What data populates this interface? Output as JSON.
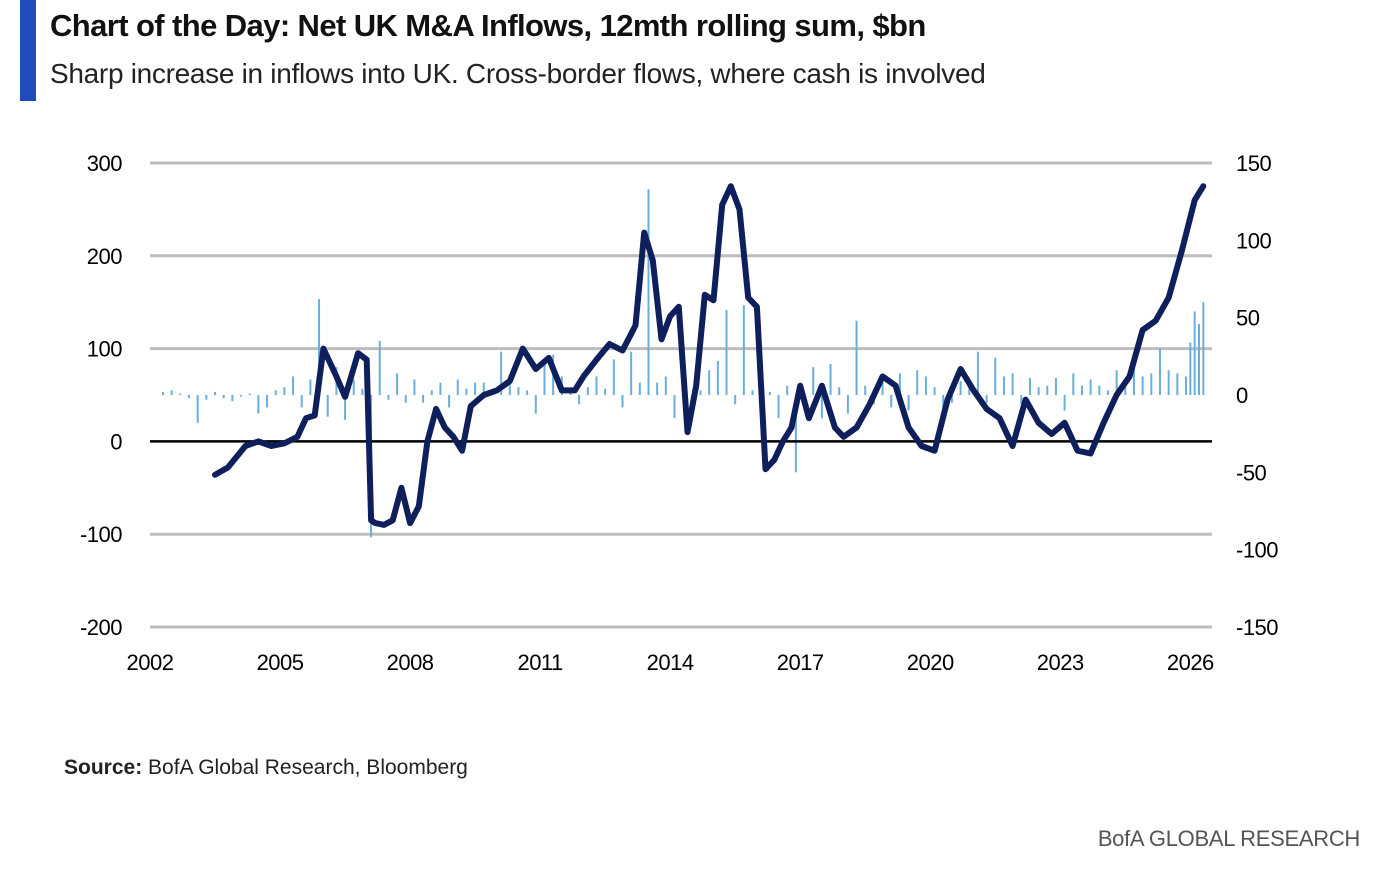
{
  "header": {
    "title": "Chart of the Day: Net UK M&A Inflows, 12mth rolling sum, $bn",
    "subtitle": "Sharp increase in inflows into UK. Cross-border flows, where cash is involved"
  },
  "source": {
    "label": "Source:",
    "text": " BofA Global Research, Bloomberg"
  },
  "footer": {
    "brand": "BofA GLOBAL RESEARCH"
  },
  "colors": {
    "accent": "#1f4bbd",
    "line": "#0f1f5c",
    "bars": "#6aaedb",
    "grid": "#bdbdbd"
  },
  "chart_data": {
    "type": "line",
    "title": "Net UK M&A Inflows, 12mth rolling sum, $bn",
    "x_ticks": [
      "2002",
      "2005",
      "2008",
      "2011",
      "2014",
      "2017",
      "2020",
      "2023",
      "2026"
    ],
    "xlim": [
      2002,
      2026.5
    ],
    "left_axis": {
      "ticks": [
        "300",
        "200",
        "100",
        "0",
        "-100",
        "-200"
      ],
      "ylim": [
        -200,
        300
      ]
    },
    "right_axis": {
      "ticks": [
        "150",
        "100",
        "50",
        "0",
        "-50",
        "-100",
        "-150"
      ],
      "ylim": [
        -150,
        150
      ]
    },
    "grid": true,
    "legend": "none",
    "series": [
      {
        "axis": "left",
        "style": "line",
        "x": [
          2003.5,
          2003.8,
          2004.2,
          2004.5,
          2004.8,
          2005.1,
          2005.4,
          2005.6,
          2005.8,
          2006.0,
          2006.3,
          2006.5,
          2006.8,
          2007.0,
          2007.1,
          2007.2,
          2007.4,
          2007.6,
          2007.8,
          2008.0,
          2008.2,
          2008.4,
          2008.6,
          2008.8,
          2009.0,
          2009.2,
          2009.4,
          2009.7,
          2010.0,
          2010.3,
          2010.6,
          2010.9,
          2011.2,
          2011.5,
          2011.8,
          2012.0,
          2012.3,
          2012.6,
          2012.9,
          2013.2,
          2013.4,
          2013.6,
          2013.8,
          2014.0,
          2014.2,
          2014.4,
          2014.6,
          2014.8,
          2015.0,
          2015.2,
          2015.4,
          2015.6,
          2015.8,
          2016.0,
          2016.2,
          2016.4,
          2016.6,
          2016.8,
          2017.0,
          2017.2,
          2017.5,
          2017.8,
          2018.0,
          2018.3,
          2018.6,
          2018.9,
          2019.2,
          2019.5,
          2019.8,
          2020.1,
          2020.4,
          2020.7,
          2021.0,
          2021.3,
          2021.6,
          2021.9,
          2022.2,
          2022.5,
          2022.8,
          2023.1,
          2023.4,
          2023.7,
          2024.0,
          2024.3,
          2024.6,
          2024.9,
          2025.2,
          2025.5,
          2025.8,
          2026.1,
          2026.3
        ],
        "y": [
          -36,
          -28,
          -5,
          0,
          -5,
          -2,
          5,
          25,
          28,
          100,
          70,
          48,
          95,
          88,
          -85,
          -88,
          -90,
          -85,
          -50,
          -88,
          -70,
          0,
          35,
          15,
          5,
          -10,
          38,
          50,
          55,
          65,
          100,
          78,
          90,
          55,
          55,
          70,
          88,
          105,
          98,
          125,
          225,
          195,
          110,
          135,
          145,
          10,
          60,
          158,
          152,
          255,
          275,
          250,
          155,
          145,
          -30,
          -20,
          0,
          15,
          60,
          25,
          60,
          15,
          5,
          15,
          40,
          70,
          60,
          15,
          -5,
          -10,
          45,
          78,
          55,
          35,
          25,
          -5,
          45,
          20,
          8,
          20,
          -10,
          -13,
          20,
          50,
          70,
          120,
          130,
          155,
          205,
          260,
          275
        ]
      },
      {
        "axis": "right",
        "style": "bar",
        "x": [
          2002.3,
          2002.5,
          2002.7,
          2002.9,
          2003.1,
          2003.3,
          2003.5,
          2003.7,
          2003.9,
          2004.1,
          2004.3,
          2004.5,
          2004.7,
          2004.9,
          2005.1,
          2005.3,
          2005.5,
          2005.7,
          2005.9,
          2006.1,
          2006.3,
          2006.5,
          2006.7,
          2006.9,
          2007.1,
          2007.3,
          2007.5,
          2007.7,
          2007.9,
          2008.1,
          2008.3,
          2008.5,
          2008.7,
          2008.9,
          2009.1,
          2009.3,
          2009.5,
          2009.7,
          2009.9,
          2010.1,
          2010.3,
          2010.5,
          2010.7,
          2010.9,
          2011.1,
          2011.3,
          2011.5,
          2011.7,
          2011.9,
          2012.1,
          2012.3,
          2012.5,
          2012.7,
          2012.9,
          2013.1,
          2013.3,
          2013.5,
          2013.7,
          2013.9,
          2014.1,
          2014.3,
          2014.5,
          2014.7,
          2014.9,
          2015.1,
          2015.3,
          2015.5,
          2015.7,
          2015.9,
          2016.1,
          2016.3,
          2016.5,
          2016.7,
          2016.9,
          2017.1,
          2017.3,
          2017.5,
          2017.7,
          2017.9,
          2018.1,
          2018.3,
          2018.5,
          2018.7,
          2018.9,
          2019.1,
          2019.3,
          2019.5,
          2019.7,
          2019.9,
          2020.1,
          2020.3,
          2020.5,
          2020.7,
          2020.9,
          2021.1,
          2021.3,
          2021.5,
          2021.7,
          2021.9,
          2022.1,
          2022.3,
          2022.5,
          2022.7,
          2022.9,
          2023.1,
          2023.3,
          2023.5,
          2023.7,
          2023.9,
          2024.1,
          2024.3,
          2024.5,
          2024.7,
          2024.9,
          2025.1,
          2025.3,
          2025.5,
          2025.7,
          2025.9,
          2026.0,
          2026.1,
          2026.2,
          2026.3
        ],
        "y": [
          2,
          3,
          1,
          -2,
          -18,
          -3,
          2,
          -2,
          -4,
          -1,
          1,
          -12,
          -8,
          3,
          5,
          12,
          -8,
          10,
          62,
          -14,
          18,
          -16,
          10,
          4,
          -92,
          35,
          -3,
          14,
          -5,
          10,
          -5,
          3,
          8,
          -8,
          10,
          4,
          8,
          8,
          4,
          28,
          9,
          5,
          3,
          -12,
          20,
          26,
          12,
          4,
          -6,
          5,
          12,
          4,
          23,
          -8,
          28,
          8,
          133,
          8,
          12,
          -15,
          18,
          -13,
          3,
          16,
          22,
          55,
          -6,
          58,
          3,
          2,
          2,
          -15,
          6,
          -50,
          -8,
          18,
          -15,
          20,
          5,
          -12,
          48,
          6,
          -6,
          8,
          -8,
          14,
          -10,
          16,
          12,
          5,
          -11,
          -5,
          9,
          5,
          28,
          -5,
          24,
          12,
          14,
          -6,
          11,
          5,
          6,
          11,
          -10,
          14,
          6,
          10,
          6,
          3,
          16,
          6,
          26,
          12,
          14,
          30,
          16,
          14,
          12,
          34,
          54,
          46,
          60
        ]
      }
    ]
  }
}
